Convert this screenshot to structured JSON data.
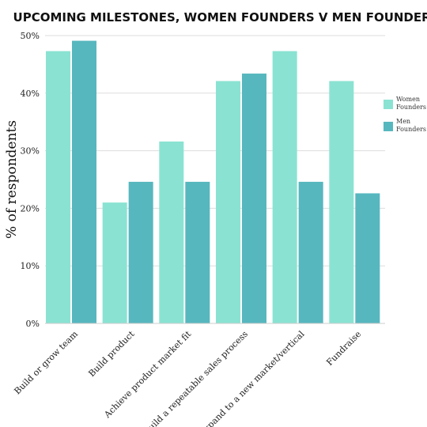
{
  "chart_data": {
    "type": "bar",
    "title": "UPCOMING MILESTONES, WOMEN FOUNDERS V MEN FOUNDERS",
    "xlabel": "",
    "ylabel": "% of respondents",
    "ylim": [
      0,
      50
    ],
    "yticks": [
      "0%",
      "10%",
      "20%",
      "30%",
      "40%",
      "50%"
    ],
    "categories": [
      "Build or grow team",
      "Build product",
      "Achieve product market fit",
      "Build a repeatable sales process",
      "Expand to a new market/vertical",
      "Fundraise"
    ],
    "series": [
      {
        "name": "Women Founders",
        "name_lines": [
          "Women",
          "Founders"
        ],
        "color": "#8ae3d2",
        "values": [
          47.3,
          21.0,
          31.6,
          42.1,
          47.3,
          42.1
        ]
      },
      {
        "name": "Men Founders",
        "name_lines": [
          "Men",
          "Founders"
        ],
        "color": "#57b7be",
        "values": [
          49.1,
          24.6,
          24.6,
          43.4,
          24.6,
          22.6
        ]
      }
    ],
    "grid": true,
    "legend_position": "right"
  }
}
